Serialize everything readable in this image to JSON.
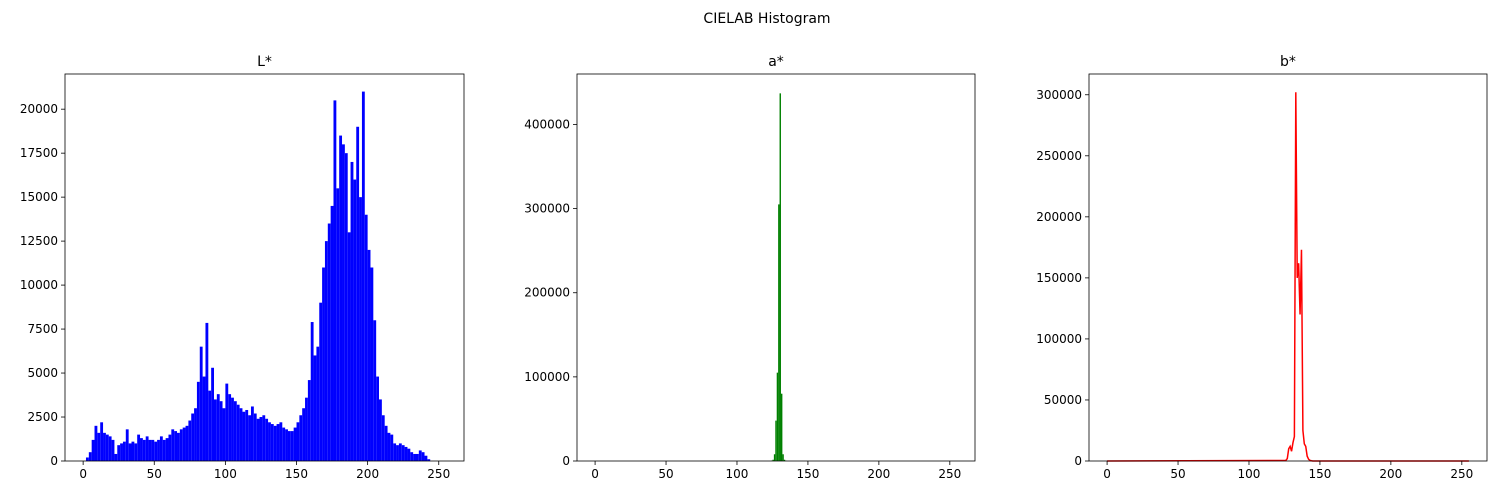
{
  "figure": {
    "suptitle": "CIELAB Histogram"
  },
  "chart_data": [
    {
      "type": "bar",
      "title": "L*",
      "xlabel": "",
      "ylabel": "",
      "color": "#0000ff",
      "xlim": [
        -12.75,
        267.75
      ],
      "ylim": [
        0,
        22000
      ],
      "xticks": [
        0,
        50,
        100,
        150,
        200,
        250
      ],
      "yticks": [
        0,
        2500,
        5000,
        7500,
        10000,
        12500,
        15000,
        17500,
        20000
      ],
      "x": [
        2,
        4,
        6,
        8,
        10,
        12,
        14,
        16,
        18,
        20,
        22,
        24,
        26,
        28,
        30,
        32,
        34,
        36,
        38,
        40,
        42,
        44,
        46,
        48,
        50,
        52,
        54,
        56,
        58,
        60,
        62,
        64,
        66,
        68,
        70,
        72,
        74,
        76,
        78,
        80,
        82,
        84,
        86,
        88,
        90,
        92,
        94,
        96,
        98,
        100,
        102,
        104,
        106,
        108,
        110,
        112,
        114,
        116,
        118,
        120,
        122,
        124,
        126,
        128,
        130,
        132,
        134,
        136,
        138,
        140,
        142,
        144,
        146,
        148,
        150,
        152,
        154,
        156,
        158,
        160,
        162,
        164,
        166,
        168,
        170,
        172,
        174,
        176,
        178,
        180,
        182,
        184,
        186,
        188,
        190,
        192,
        194,
        196,
        198,
        200,
        202,
        204,
        206,
        208,
        210,
        212,
        214,
        216,
        218,
        220,
        222,
        224,
        226,
        228,
        230,
        232,
        234,
        236,
        238,
        240,
        242
      ],
      "values": [
        200,
        500,
        1200,
        2000,
        1600,
        2200,
        1600,
        1500,
        1400,
        1200,
        400,
        900,
        1000,
        1100,
        1800,
        1000,
        1100,
        1000,
        1500,
        1300,
        1200,
        1400,
        1200,
        1200,
        1100,
        1200,
        1400,
        1200,
        1300,
        1500,
        1800,
        1700,
        1600,
        1800,
        1900,
        2000,
        2300,
        2700,
        3000,
        4500,
        6500,
        4800,
        7850,
        4000,
        5300,
        3500,
        3800,
        3400,
        3000,
        4400,
        3800,
        3600,
        3400,
        3200,
        3000,
        2800,
        2900,
        2600,
        3100,
        2700,
        2400,
        2500,
        2600,
        2400,
        2200,
        2100,
        2000,
        2100,
        2200,
        1900,
        1800,
        1700,
        1700,
        1900,
        2200,
        2600,
        3000,
        3600,
        4600,
        7900,
        6000,
        6500,
        9000,
        11000,
        12500,
        13500,
        14500,
        20500,
        15500,
        18500,
        18000,
        17500,
        13000,
        17000,
        16000,
        19000,
        15000,
        21000,
        14000,
        12000,
        11000,
        8000,
        4800,
        3500,
        2600,
        2000,
        1600,
        1500,
        1000,
        900,
        1000,
        900,
        800,
        700,
        500,
        400,
        400,
        600,
        500,
        300,
        100
      ]
    },
    {
      "type": "bar",
      "title": "a*",
      "xlabel": "",
      "ylabel": "",
      "color": "#008000",
      "xlim": [
        -12.75,
        267.75
      ],
      "ylim": [
        0,
        460000
      ],
      "xticks": [
        0,
        50,
        100,
        150,
        200,
        250
      ],
      "yticks": [
        0,
        100000,
        200000,
        300000,
        400000
      ],
      "x": [
        124,
        125,
        126,
        127,
        128,
        129,
        130,
        131,
        132,
        133,
        134
      ],
      "values": [
        500,
        1500,
        8000,
        48000,
        105000,
        305000,
        437000,
        80000,
        8000,
        1500,
        300
      ]
    },
    {
      "type": "line",
      "title": "b*",
      "xlabel": "",
      "ylabel": "",
      "color": "#ff0000",
      "xlim": [
        -12.75,
        267.75
      ],
      "ylim": [
        0,
        317000
      ],
      "xticks": [
        0,
        50,
        100,
        150,
        200,
        250
      ],
      "yticks": [
        0,
        50000,
        100000,
        150000,
        200000,
        250000,
        300000
      ],
      "x": [
        0,
        126,
        127,
        128,
        129,
        130,
        131,
        132,
        133,
        134,
        135,
        136,
        137,
        138,
        139,
        140,
        141,
        142,
        143,
        144,
        145,
        255
      ],
      "values": [
        0,
        500,
        2000,
        10000,
        12000,
        8000,
        15000,
        20000,
        302000,
        150000,
        162000,
        120000,
        173000,
        25000,
        14000,
        12000,
        4000,
        1500,
        500,
        200,
        0,
        0
      ]
    }
  ]
}
